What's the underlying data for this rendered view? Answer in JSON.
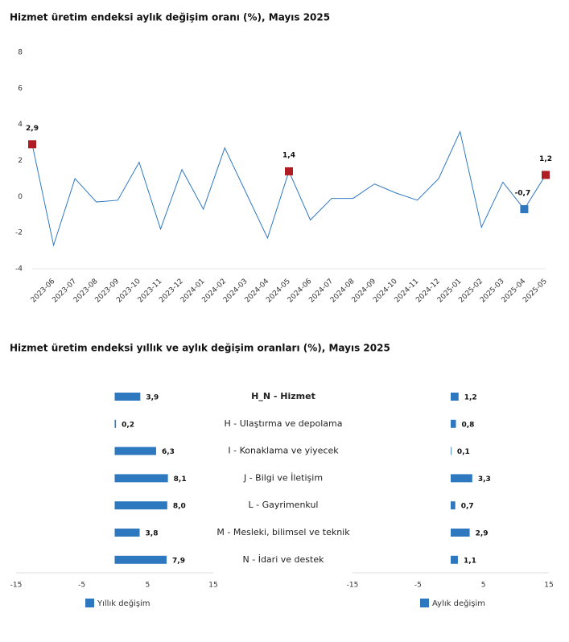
{
  "chart_data": [
    {
      "type": "line",
      "title": "Hizmet üretim endeksi aylık değişim oranı (%), Mayıs 2025",
      "categories": [
        null,
        "2023-06",
        "2023-07",
        "2023-08",
        "2023-09",
        "2023-10",
        "2023-11",
        "2023-12",
        "2024-01",
        "2024-02",
        "2024-03",
        "2024-04",
        "2024-05",
        "2024-06",
        "2024-07",
        "2024-08",
        "2024-09",
        "2024-10",
        "2024-11",
        "2024-12",
        "2025-01",
        "2025-02",
        "2025-03",
        "2025-04",
        "2025-05"
      ],
      "values": [
        2.9,
        -2.7,
        1.0,
        -0.3,
        -0.2,
        1.9,
        -1.8,
        1.5,
        -0.7,
        2.7,
        0.2,
        -2.3,
        1.4,
        -1.3,
        -0.1,
        -0.1,
        0.7,
        0.2,
        -0.2,
        1.0,
        3.6,
        -1.7,
        0.8,
        -0.7,
        1.2
      ],
      "value_labels": [
        "2,9",
        null,
        null,
        null,
        null,
        null,
        null,
        null,
        null,
        null,
        null,
        null,
        "1,4",
        null,
        null,
        null,
        null,
        null,
        null,
        null,
        null,
        null,
        null,
        "-0,7",
        "1,2"
      ],
      "marker_colors": [
        "#b01c24",
        null,
        null,
        null,
        null,
        null,
        null,
        null,
        null,
        null,
        null,
        null,
        "#b01c24",
        null,
        null,
        null,
        null,
        null,
        null,
        null,
        null,
        null,
        null,
        "#2e78c0",
        "#b01c24"
      ],
      "color": "#2e78c0",
      "ylim": [
        -4,
        8
      ],
      "yticks": [
        -4,
        -2,
        0,
        2,
        4,
        6,
        8
      ]
    },
    {
      "type": "hbar-panels",
      "title": "Hizmet üretim endeksi yıllık ve aylık değişim oranları (%), Mayıs 2025",
      "categories": [
        "H_N - Hizmet",
        "H - Ulaştırma ve depolama",
        "I - Konaklama ve yiyecek",
        "J - Bilgi ve İletişim",
        "L - Gayrimenkul",
        "M - Mesleki, bilimsel ve teknik",
        "N - İdari ve destek"
      ],
      "series": [
        {
          "name": "Yıllık değişim",
          "color": "#2e78c0",
          "values": [
            3.9,
            0.2,
            6.3,
            8.1,
            8.0,
            3.8,
            7.9
          ],
          "value_labels": [
            "3,9",
            "0,2",
            "6,3",
            "8,1",
            "8,0",
            "3,8",
            "7,9"
          ]
        },
        {
          "name": "Aylık değişim",
          "color": "#2e78c0",
          "values": [
            1.2,
            0.8,
            0.1,
            3.3,
            0.7,
            2.9,
            1.1
          ],
          "value_labels": [
            "1,2",
            "0,8",
            "0,1",
            "3,3",
            "0,7",
            "2,9",
            "1,1"
          ]
        }
      ],
      "xlim": [
        -15,
        15
      ],
      "xticks": [
        -15,
        -5,
        5,
        15
      ]
    }
  ]
}
